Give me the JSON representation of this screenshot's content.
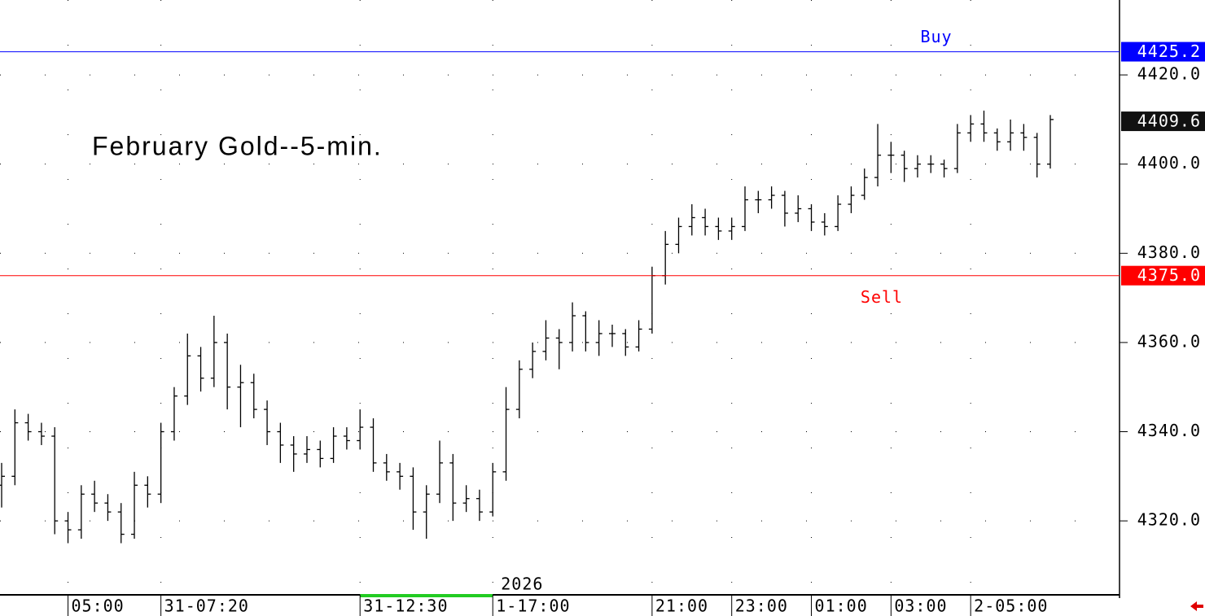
{
  "chart_data": {
    "type": "ohlc",
    "title": "February Gold--5-min.",
    "year_label": "2026",
    "year_index": 37,
    "open": [
      4328,
      4330,
      4342,
      4340,
      4339,
      4320,
      4318,
      4326,
      4324,
      4322,
      4317,
      4328,
      4326,
      4340,
      4348,
      4357,
      4352,
      4360,
      4350,
      4351,
      4345,
      4340,
      4337,
      4335,
      4336,
      4334,
      4339,
      4338,
      4341,
      4333,
      4331,
      4330,
      4322,
      4326,
      4333,
      4324,
      4325,
      4322,
      4331,
      4345,
      4354,
      4358,
      4361,
      4360,
      4366,
      4360,
      4362,
      4362,
      4359,
      4363,
      4375,
      4382,
      4386,
      4388,
      4386,
      4385,
      4386,
      4392,
      4392,
      4393,
      4389,
      4390,
      4387,
      4386,
      4391,
      4393,
      4397,
      4402,
      4402,
      4399,
      4400,
      4400,
      4399,
      4407,
      4409,
      4407,
      4405,
      4407,
      4406,
      4400
    ],
    "high": [
      4333,
      4345,
      4344,
      4342,
      4341,
      4322,
      4328,
      4329,
      4326,
      4324,
      4331,
      4330,
      4342,
      4350,
      4362,
      4359,
      4366,
      4362,
      4355,
      4353,
      4347,
      4342,
      4339,
      4339,
      4338,
      4341,
      4341,
      4345,
      4343,
      4335,
      4333,
      4332,
      4328,
      4338,
      4335,
      4328,
      4327,
      4333,
      4350,
      4356,
      4360,
      4365,
      4363,
      4369,
      4367,
      4365,
      4364,
      4363,
      4365,
      4377,
      4385,
      4388,
      4391,
      4390,
      4388,
      4388,
      4395,
      4394,
      4395,
      4394,
      4393,
      4391,
      4389,
      4393,
      4395,
      4399,
      4409,
      4405,
      4403,
      4402,
      4402,
      4401,
      4409,
      4411,
      4412,
      4408,
      4410,
      4409,
      4407,
      4411
    ],
    "low": [
      4323,
      4328,
      4338,
      4337,
      4317,
      4315,
      4316,
      4322,
      4320,
      4315,
      4316,
      4323,
      4324,
      4338,
      4346,
      4349,
      4350,
      4345,
      4341,
      4343,
      4337,
      4333,
      4331,
      4333,
      4332,
      4333,
      4336,
      4336,
      4331,
      4329,
      4327,
      4318,
      4316,
      4324,
      4320,
      4322,
      4320,
      4321,
      4329,
      4343,
      4352,
      4356,
      4354,
      4358,
      4358,
      4357,
      4359,
      4357,
      4358,
      4362,
      4373,
      4380,
      4384,
      4384,
      4383,
      4383,
      4385,
      4389,
      4390,
      4386,
      4387,
      4385,
      4384,
      4385,
      4389,
      4392,
      4395,
      4398,
      4396,
      4397,
      4398,
      4397,
      4398,
      4405,
      4405,
      4403,
      4403,
      4403,
      4397,
      4399
    ],
    "close": [
      4330,
      4342,
      4340,
      4339,
      4320,
      4318,
      4326,
      4324,
      4322,
      4317,
      4328,
      4326,
      4340,
      4348,
      4357,
      4352,
      4360,
      4350,
      4351,
      4345,
      4340,
      4337,
      4335,
      4336,
      4334,
      4339,
      4338,
      4341,
      4333,
      4331,
      4330,
      4322,
      4326,
      4333,
      4324,
      4325,
      4322,
      4331,
      4345,
      4354,
      4358,
      4361,
      4360,
      4366,
      4360,
      4362,
      4362,
      4359,
      4363,
      4375,
      4382,
      4386,
      4388,
      4386,
      4385,
      4386,
      4392,
      4392,
      4393,
      4389,
      4390,
      4387,
      4386,
      4391,
      4393,
      4397,
      4402,
      4402,
      4399,
      4400,
      4400,
      4399,
      4407,
      4409,
      4407,
      4405,
      4407,
      4406,
      4400,
      4410
    ],
    "color": "#000000",
    "ylim": [
      4303.6,
      4436.8
    ],
    "yticks": [
      {
        "value": 4320,
        "label": "4320.0"
      },
      {
        "value": 4340,
        "label": "4340.0"
      },
      {
        "value": 4360,
        "label": "4360.0"
      },
      {
        "value": 4380,
        "label": "4380.0"
      },
      {
        "value": 4400,
        "label": "4400.0"
      },
      {
        "value": 4420,
        "label": "4420.0"
      }
    ],
    "xticks": [
      {
        "index": 5,
        "label": "05:00"
      },
      {
        "index": 12,
        "label": "31-07:20"
      },
      {
        "index": 27,
        "label": "31-12:30"
      },
      {
        "index": 37,
        "label": "1-17:00"
      },
      {
        "index": 49,
        "label": "21:00"
      },
      {
        "index": 55,
        "label": "23:00"
      },
      {
        "index": 61,
        "label": "01:00"
      },
      {
        "index": 67,
        "label": "03:00"
      },
      {
        "index": 73,
        "label": "2-05:00"
      }
    ],
    "levels": [
      {
        "name": "Buy",
        "value": 4425.2,
        "label": "4425.2",
        "color": "#0000ff"
      },
      {
        "name": "Sell",
        "value": 4375.0,
        "label": "4375.0",
        "color": "#ff0000"
      }
    ],
    "last": {
      "value": 4409.6,
      "label": "4409.6"
    }
  }
}
